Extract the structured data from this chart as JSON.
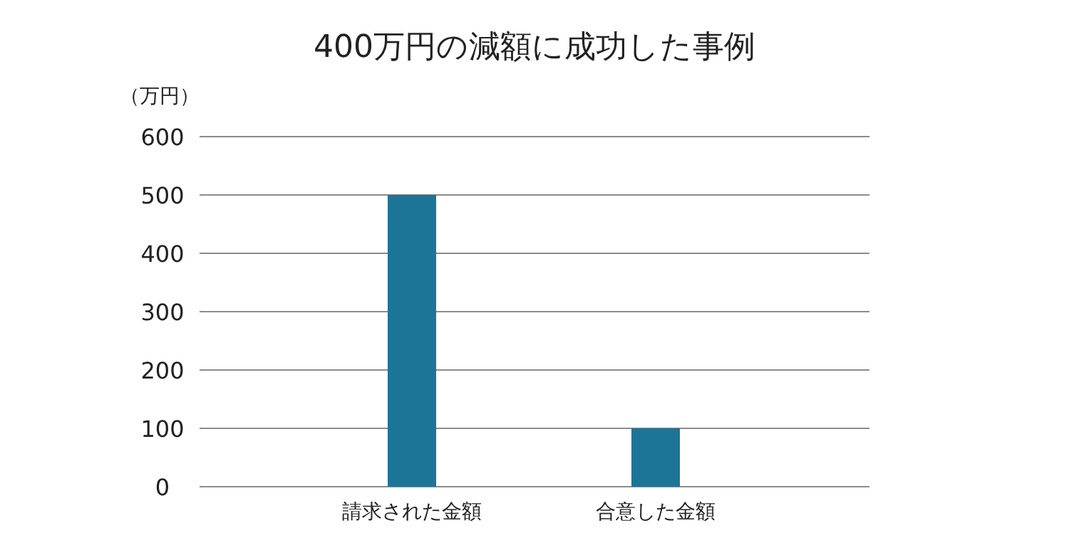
{
  "chart_data": {
    "type": "bar",
    "title": "400万円の減額に成功した事例",
    "ylabel": "（万円）",
    "categories": [
      "請求された金額",
      "合意した金額"
    ],
    "values": [
      500,
      100
    ],
    "color": "#1c7597",
    "ylim": [
      0,
      600
    ],
    "yticks": [
      0,
      100,
      200,
      300,
      400,
      500,
      600
    ],
    "grid": "y",
    "legend": false
  }
}
